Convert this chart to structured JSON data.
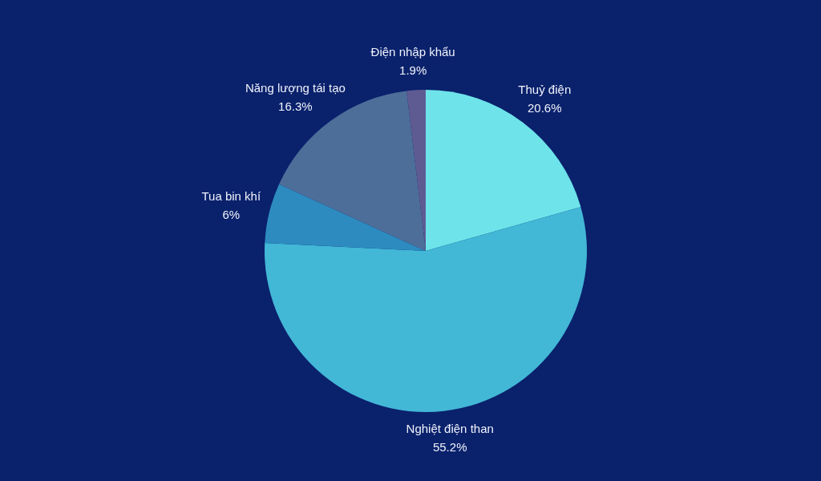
{
  "chart_data": {
    "type": "pie",
    "categories": [
      "Thuỷ điện",
      "Nghiệt điện than",
      "Tua bin khí",
      "Năng lượng tái tạo",
      "Điện nhập khẩu"
    ],
    "values": [
      20.6,
      55.2,
      6,
      16.3,
      1.9
    ],
    "colors": [
      "#6ee4ea",
      "#42b7d6",
      "#2d8bc0",
      "#4e6e9a",
      "#5e5b93"
    ],
    "value_labels": [
      "20.6%",
      "55.2%",
      "6%",
      "16.3%",
      "1.9%"
    ],
    "legend": false
  }
}
